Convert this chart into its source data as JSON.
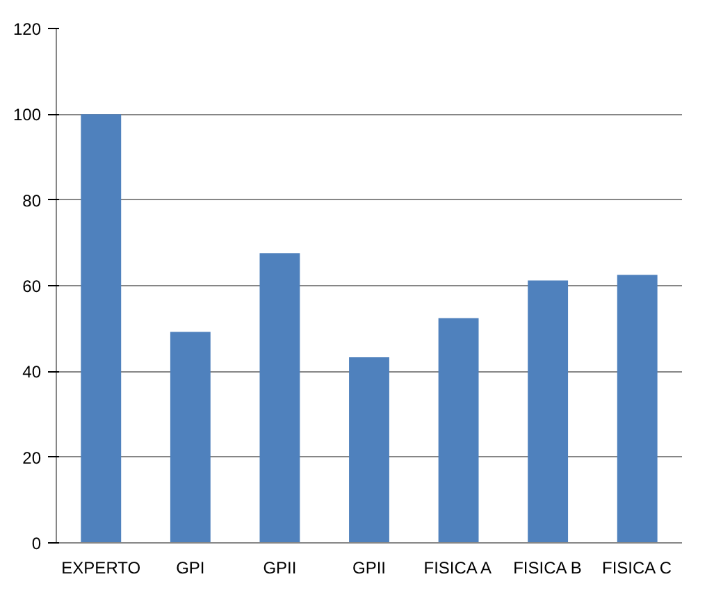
{
  "chart_data": {
    "type": "bar",
    "categories": [
      "EXPERTO",
      "GPI",
      "GPII",
      "GPII",
      "FISICA A",
      "FISICA B",
      "FISICA C"
    ],
    "values": [
      100,
      49.2,
      67.6,
      43.3,
      52.4,
      61.2,
      62.5
    ],
    "color": "#4f81bd",
    "ylim": [
      0,
      120
    ],
    "yticks": [
      0,
      20,
      40,
      60,
      80,
      100,
      120
    ],
    "grid": "y"
  }
}
